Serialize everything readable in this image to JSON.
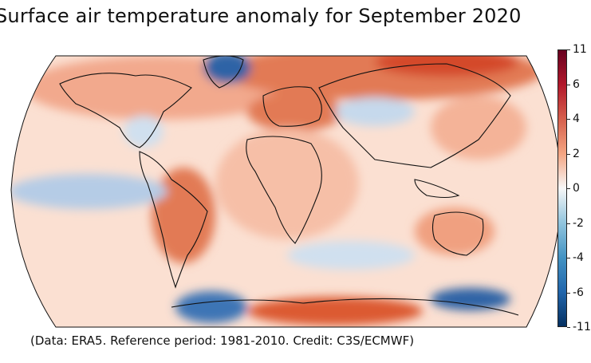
{
  "title": "Surface air temperature anomaly for September 2020",
  "credit": "(Data: ERA5.  Reference period: 1981-2010.  Credit: C3S/ECMWF)",
  "colorbar": {
    "ticks": [
      "11",
      "6",
      "4",
      "2",
      "0",
      "-2",
      "-4",
      "-6",
      "-11"
    ],
    "colors": [
      "#67001f",
      "#b2182b",
      "#d6604d",
      "#f4a582",
      "#f7f7f7",
      "#92c5de",
      "#4393c3",
      "#2166ac",
      "#053061"
    ]
  },
  "map": {
    "projection": "robinson",
    "ocean_base": "#fbe0d2",
    "land_warm": "#f2a98d",
    "hot": "#d9542f",
    "cool": "#c6d9ec",
    "cold": "#2f63a6"
  }
}
